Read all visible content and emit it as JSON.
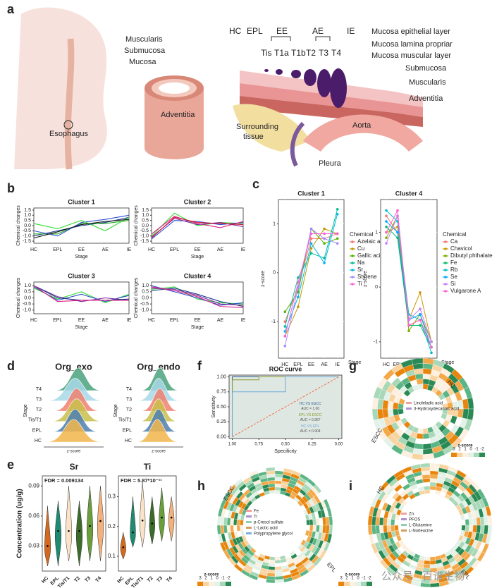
{
  "panel_a": {
    "letter": "a",
    "labels": [
      "Esophagus",
      "Muscularis",
      "Submucosa",
      "Mucosa",
      "Adventitia",
      "HC",
      "EPL",
      "EE",
      "AE",
      "IE",
      "Tis",
      "T1a",
      "T1b",
      "T2",
      "T3",
      "T4",
      "Mucosa epithelial layer",
      "Mucosa lamina propriar",
      "Mucosa muscular layer",
      "Submucosa",
      "Muscularis",
      "Adventitia",
      "Surrounding",
      "tissue",
      "Aorta",
      "Pleura"
    ]
  },
  "letters": [
    "b",
    "c",
    "d",
    "e",
    "f",
    "g",
    "h",
    "i"
  ],
  "panel_g": {
    "sector_labels": [
      "HC",
      "ESCC"
    ],
    "legend_items": [
      "Linoleladic acid",
      "3-Hydroxydecanoic acid"
    ],
    "scale_title": "z-score",
    "scale_ticks": [
      3,
      2,
      1,
      0,
      -1,
      -2
    ]
  },
  "panel_h": {
    "sector_labels": [
      "ESCC",
      "EPL"
    ],
    "legend_items": [
      "Fe",
      "Ti",
      "p-Cresol sulfate",
      "L-Lactic acid",
      "Polypropylene glycol"
    ],
    "scale_title": "z-score",
    "scale_ticks": [
      3,
      2,
      1,
      0,
      -1,
      -2
    ]
  },
  "panel_i": {
    "sector_labels": [
      "HC",
      "EPL"
    ],
    "legend_items": [
      "Zn",
      "PFOS",
      "L-Glutamine",
      "L-Norleucine"
    ],
    "scale_title": "z-score",
    "scale_ticks": [
      3,
      2,
      1,
      0,
      -1,
      -2
    ]
  },
  "watermark": "公众号 · 百谱生物",
  "chart_data": [
    {
      "type": "line",
      "title": "Cluster 1",
      "xlabel": "Stage",
      "ylabel": "Chemical changes",
      "categories": [
        "HC",
        "EPL",
        "EE",
        "AE",
        "IE"
      ],
      "ylim": [
        -1.7,
        1.7
      ],
      "yticks": [
        -1.5,
        {
          "value": -1,
          "label": "-1.0"
        },
        -0.5,
        {
          "value": 0,
          "label": "0.0"
        },
        0.5,
        {
          "value": 1,
          "label": "1.0"
        },
        1.5
      ],
      "series": [
        {
          "color": "#1a3a8a",
          "values": [
            -1,
            -0.5,
            0,
            0.3,
            0.8
          ]
        },
        {
          "color": "#22aa22",
          "values": [
            -0.8,
            -0.8,
            0.2,
            0.2,
            0.5
          ]
        },
        {
          "color": "#3050d0",
          "values": [
            -0.5,
            -1,
            0.3,
            0.6,
            1
          ]
        },
        {
          "color": "#33dd33",
          "values": [
            0.2,
            -0.3,
            0.5,
            -0.5,
            0.8
          ]
        },
        {
          "color": "#111111",
          "values": [
            -1.2,
            -0.6,
            0.1,
            0.4,
            0.6
          ]
        }
      ]
    },
    {
      "type": "line",
      "title": "Cluster 2",
      "xlabel": "Stage",
      "ylabel": "Chemical changes",
      "categories": [
        "HC",
        "EPL",
        "EE",
        "AE",
        "IE"
      ],
      "ylim": [
        -1.7,
        1.7
      ],
      "yticks": [
        -1.5,
        {
          "value": -1,
          "label": "-1.0"
        },
        -0.5,
        {
          "value": 0,
          "label": "0.0"
        },
        0.5,
        {
          "value": 1,
          "label": "1.0"
        },
        1.5
      ],
      "series": [
        {
          "color": "#33dd33",
          "values": [
            -1,
            1.2,
            0,
            0.3,
            0.2
          ]
        },
        {
          "color": "#3050d0",
          "values": [
            -1.3,
            0.5,
            0.4,
            0.1,
            0.3
          ]
        },
        {
          "color": "#e0208a",
          "values": [
            -0.8,
            0.9,
            0.2,
            -0.2,
            0.4
          ]
        },
        {
          "color": "#7a2a9a",
          "values": [
            -1.1,
            0.7,
            0.1,
            0.3,
            -0.1
          ]
        },
        {
          "color": "#dd1133",
          "values": [
            -1.2,
            0.8,
            0.3,
            0.2,
            0.1
          ]
        }
      ]
    },
    {
      "type": "line",
      "title": "Cluster 3",
      "xlabel": "Stage",
      "ylabel": "Chemical changes",
      "categories": [
        "HC",
        "EPL",
        "EE",
        "AE",
        "IE"
      ],
      "ylim": [
        -1.3,
        1.3
      ],
      "yticks": [
        {
          "value": -1,
          "label": "-1.0"
        },
        -0.5,
        {
          "value": 0,
          "label": "0.0"
        },
        0.5,
        {
          "value": 1,
          "label": "1.0"
        }
      ],
      "series": [
        {
          "color": "#33dd33",
          "values": [
            0.8,
            -0.1,
            0.5,
            -0.4,
            0.3
          ]
        },
        {
          "color": "#3050d0",
          "values": [
            0.9,
            -0.2,
            0.3,
            -0.3,
            0.2
          ]
        },
        {
          "color": "#7a2a9a",
          "values": [
            1,
            0.1,
            -0.3,
            0,
            -0.2
          ]
        },
        {
          "color": "#1a3a8a",
          "values": [
            1,
            0,
            -0.2,
            -0.2,
            -0.1
          ]
        },
        {
          "color": "#e0208a",
          "values": [
            1,
            -0.3,
            -0.2,
            -0.2,
            -0.2
          ]
        }
      ]
    },
    {
      "type": "line",
      "title": "Cluster 4",
      "xlabel": "Stage",
      "ylabel": "Chemical changes",
      "categories": [
        "HC",
        "EPL",
        "EE",
        "AE",
        "IE"
      ],
      "ylim": [
        -1.3,
        1.3
      ],
      "yticks": [
        {
          "value": -1,
          "label": "-1.0"
        },
        -0.5,
        {
          "value": 0,
          "label": "0.0"
        },
        0.5,
        {
          "value": 1,
          "label": "1.0"
        }
      ],
      "series": [
        {
          "color": "#33dd33",
          "values": [
            0.7,
            0.9,
            -0.1,
            -0.4,
            -0.5
          ]
        },
        {
          "color": "#3050d0",
          "values": [
            1,
            0.5,
            0,
            -0.6,
            -0.4
          ]
        },
        {
          "color": "#1a3a8a",
          "values": [
            0.6,
            0.8,
            0.3,
            -0.3,
            -0.7
          ]
        },
        {
          "color": "#7a2a9a",
          "values": [
            0.8,
            0.7,
            0.2,
            -0.5,
            -0.6
          ]
        },
        {
          "color": "#e0208a",
          "values": [
            0.9,
            0.6,
            0.1,
            -0.7,
            -0.8
          ]
        }
      ]
    },
    {
      "type": "line",
      "markers": true,
      "title": "Cluster 1",
      "xlabel": "Stage",
      "ylabel": "z-score",
      "legend_title": "Chemical",
      "categories": [
        "HC",
        "EPL",
        "EE",
        "AE",
        "IE"
      ],
      "ylim": [
        -1.75,
        1.5
      ],
      "yticks": [
        -1,
        0,
        1
      ],
      "series": [
        {
          "name": "Azelaic acid",
          "color": "#f8766d",
          "values": [
            -1,
            -0.3,
            0.7,
            0.7,
            0.8
          ]
        },
        {
          "name": "Cu",
          "color": "#c49a00",
          "values": [
            -1.3,
            -0.7,
            0.5,
            0.9,
            0.8
          ]
        },
        {
          "name": "Gallic acid",
          "color": "#53b400",
          "values": [
            -0.8,
            -0.4,
            0.9,
            0.6,
            0.7
          ]
        },
        {
          "name": "Na",
          "color": "#00c094",
          "values": [
            -1.1,
            -0.1,
            0.4,
            0.3,
            1.3
          ]
        },
        {
          "name": "Sr",
          "color": "#00b6eb",
          "values": [
            -1.2,
            -0.5,
            0.6,
            0.2,
            1.2
          ]
        },
        {
          "name": "Styrene",
          "color": "#a58aff",
          "values": [
            -1.5,
            -0.3,
            0.9,
            0.7,
            0.6
          ]
        },
        {
          "name": "Ti",
          "color": "#fb61d7",
          "values": [
            -1.3,
            -0.2,
            0.8,
            0.8,
            0.8
          ]
        }
      ]
    },
    {
      "type": "line",
      "markers": true,
      "title": "Cluster 4",
      "xlabel": "Stage",
      "ylabel": "z-score",
      "legend_title": "Chemical",
      "categories": [
        "HC",
        "EPL",
        "EE",
        "AE",
        "IE"
      ],
      "ylim": [
        -1.3,
        1.6
      ],
      "yticks": [
        -1,
        0,
        1
      ],
      "series": [
        {
          "name": "Ca",
          "color": "#f8766d",
          "values": [
            1.3,
            1,
            -0.7,
            -0.6,
            -1.1
          ]
        },
        {
          "name": "Chavicol",
          "color": "#cd9600",
          "values": [
            1,
            1.1,
            -0.6,
            -0.1,
            -1
          ]
        },
        {
          "name": "Dibutyl phthalate",
          "color": "#7cae00",
          "values": [
            0.9,
            1.3,
            -0.8,
            -0.5,
            -1
          ]
        },
        {
          "name": "Fe",
          "color": "#00be67",
          "values": [
            1.1,
            0.9,
            -0.7,
            -0.7,
            -1.1
          ]
        },
        {
          "name": "Rb",
          "color": "#00bfc4",
          "values": [
            1.4,
            1.2,
            -0.5,
            -0.6,
            -1.2
          ]
        },
        {
          "name": "Se",
          "color": "#00a9ff",
          "values": [
            1.2,
            1,
            -0.6,
            -0.5,
            -1.1
          ]
        },
        {
          "name": "Si",
          "color": "#c77cff",
          "values": [
            0.8,
            1.3,
            -0.6,
            -0.4,
            -1
          ]
        },
        {
          "name": "Vulgarone A",
          "color": "#ff61cc",
          "values": [
            1,
            1.4,
            -0.7,
            -0.6,
            -1.1
          ]
        }
      ]
    },
    {
      "type": "ridge",
      "title": "Org_exo",
      "xlabel": "z-score",
      "ylabel": "Stage",
      "xlim": [
        -2,
        2
      ],
      "series": [
        {
          "name": "T4",
          "color": "#4aa27c",
          "mean": 0.3,
          "sd": 0.5
        },
        {
          "name": "T3",
          "color": "#a8d8e8",
          "mean": 0.1,
          "sd": 0.6
        },
        {
          "name": "T2",
          "color": "#f08070",
          "mean": 0.2,
          "sd": 0.5
        },
        {
          "name": "Tis/T1",
          "color": "#c9c04a",
          "mean": 0.2,
          "sd": 0.55
        },
        {
          "name": "EPL",
          "color": "#4e7fb0",
          "mean": 0.1,
          "sd": 0.5
        },
        {
          "name": "HC",
          "color": "#f2b54a",
          "mean": 0,
          "sd": 0.6
        }
      ]
    },
    {
      "type": "ridge",
      "title": "Org_endo",
      "xlabel": "z-score",
      "ylabel": "Stage",
      "xlim": [
        -2,
        2
      ],
      "series": [
        {
          "name": "T4",
          "color": "#4aa27c",
          "mean": 0.1,
          "sd": 0.5
        },
        {
          "name": "T3",
          "color": "#a8d8e8",
          "mean": 0,
          "sd": 0.55
        },
        {
          "name": "T2",
          "color": "#f08070",
          "mean": 0.1,
          "sd": 0.5
        },
        {
          "name": "Tis/T1",
          "color": "#c9c04a",
          "mean": 0,
          "sd": 0.5
        },
        {
          "name": "EPL",
          "color": "#4e7fb0",
          "mean": 0,
          "sd": 0.5
        },
        {
          "name": "HC",
          "color": "#f2b54a",
          "mean": -0.1,
          "sd": 0.55
        }
      ]
    },
    {
      "type": "violin",
      "title": "Sr",
      "annotation": "FDR = 0.009134",
      "ylabel": "Concentration (ug/g)",
      "categories": [
        "HC",
        "EPL",
        "Tis/T1",
        "T2",
        "T3",
        "T4"
      ],
      "colors": [
        "#d2691e",
        "#1f8a70",
        "#fbe3c8",
        "#3d6b2a",
        "#6a9e3a",
        "#f4b07a"
      ],
      "medians": [
        0.03,
        0.045,
        0.045,
        0.045,
        0.05,
        0.055
      ],
      "mins": [
        0.01,
        0.01,
        0.015,
        0.01,
        0.015,
        0.015
      ],
      "maxs": [
        0.07,
        0.075,
        0.09,
        0.075,
        0.09,
        0.09
      ],
      "ylim": [
        0.005,
        0.1
      ],
      "yticks": [
        0.03,
        0.06,
        0.09
      ]
    },
    {
      "type": "violin",
      "title": "Ti",
      "annotation": "FDR = 5.87*10⁻¹¹",
      "categories": [
        "HC",
        "EPL",
        "Tis/T1",
        "T2",
        "T3",
        "T4"
      ],
      "colors": [
        "#d2691e",
        "#1f8a70",
        "#fbe3c8",
        "#3d6b2a",
        "#6a9e3a",
        "#f4b07a"
      ],
      "medians": [
        0.13,
        0.18,
        0.22,
        0.21,
        0.23,
        0.23
      ],
      "mins": [
        0.09,
        0.13,
        0.13,
        0.14,
        0.15,
        0.15
      ],
      "maxs": [
        0.18,
        0.3,
        0.35,
        0.3,
        0.33,
        0.3
      ],
      "ylim": [
        0.05,
        0.37
      ],
      "yticks": [
        0.1,
        0.2,
        0.3
      ]
    },
    {
      "type": "line",
      "title": "ROC curve",
      "xlabel": "Specificity",
      "ylabel": "Sensitivity",
      "xlim": [
        1.03,
        -0.03
      ],
      "ylim": [
        -0.03,
        1.03
      ],
      "xticks": [
        {
          "value": 1,
          "label": "1.00"
        },
        {
          "value": 0.75,
          "label": "0.75"
        },
        {
          "value": 0.5,
          "label": "0.50"
        },
        {
          "value": 0.25,
          "label": "0.25"
        },
        {
          "value": 0,
          "label": "0.00"
        }
      ],
      "yticks": [
        {
          "value": 0,
          "label": "0.00"
        },
        {
          "value": 0.25,
          "label": "0.25"
        },
        {
          "value": 0.5,
          "label": "0.50"
        },
        {
          "value": 0.75,
          "label": "0.75"
        },
        {
          "value": 1,
          "label": "1.00"
        }
      ],
      "series": [
        {
          "name": "HC VS ESCC",
          "label": "AUC = 1.00",
          "color": "#2e5b8a",
          "x": [
            1,
            1,
            0
          ],
          "values": [
            0,
            1,
            1
          ]
        },
        {
          "name": "EPL VS ESCC",
          "label": "AUC = 0.967",
          "color": "#8a9a2e",
          "x": [
            1,
            1,
            0.75,
            0.75,
            0
          ],
          "values": [
            0,
            0.95,
            0.95,
            1,
            1
          ]
        },
        {
          "name": "HC VS EPL",
          "label": "AUC = 0.904",
          "color": "#6aa9d8",
          "x": [
            1,
            1,
            0.5,
            0.5,
            0
          ],
          "values": [
            0,
            0.75,
            0.75,
            1,
            1
          ]
        }
      ]
    }
  ]
}
